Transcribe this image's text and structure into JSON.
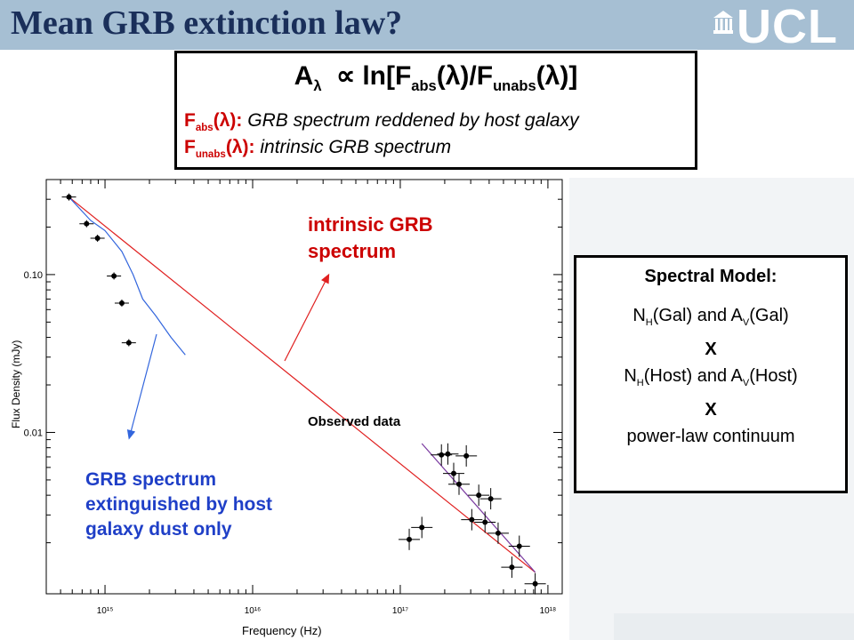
{
  "slide": {
    "title": "Mean GRB extinction law?",
    "logo_text": "UCL",
    "logo_icon": "portico-icon"
  },
  "formula_box": {
    "formula": {
      "a": "A",
      "lambda": "λ",
      "prop": "∝",
      "ln": "ln[F",
      "abs": "abs",
      "lp1": "(λ)/F",
      "unabs": "unabs",
      "lp2": "(λ)]"
    },
    "def1": {
      "f": "F",
      "sub": "abs",
      "lam": "(λ):",
      "text": "GRB spectrum reddened by host galaxy"
    },
    "def2": {
      "f": "F",
      "sub": "unabs",
      "lam": "(λ):",
      "text": "intrinsic GRB spectrum"
    }
  },
  "model_box": {
    "title": "Spectral Model:",
    "line1": {
      "n": "N",
      "nsub": "H",
      "mid": "(Gal) and A",
      "asub": "V",
      "end": "(Gal)"
    },
    "x1": "X",
    "line2": {
      "n": "N",
      "nsub": "H",
      "mid": "(Host) and A",
      "asub": "V",
      "end": "(Host)"
    },
    "x2": "X",
    "line3": "power-law continuum"
  },
  "chart_data": {
    "type": "scatter",
    "xlabel": "Frequency (Hz)",
    "ylabel": "Flux Density (mJy)",
    "xscale": "log",
    "yscale": "log",
    "xlim": [
      400000000000000.0,
      1.25e+18
    ],
    "ylim": [
      0.00095,
      0.4
    ],
    "x_ticks": [
      {
        "value": 1000000000000000.0,
        "label": "10¹⁵"
      },
      {
        "value": 1e+16,
        "label": "10¹⁶"
      },
      {
        "value": 1e+17,
        "label": "10¹⁷"
      },
      {
        "value": 1e+18,
        "label": "10¹⁸"
      }
    ],
    "y_ticks": [
      {
        "value": 0.1,
        "label": "0.10"
      },
      {
        "value": 0.01,
        "label": "0.01"
      }
    ],
    "grid": false,
    "series": [
      {
        "name": "Observed data",
        "color": "#000000",
        "points": [
          [
            570000000000000.0,
            0.31
          ],
          [
            750000000000000.0,
            0.21
          ],
          [
            890000000000000.0,
            0.17
          ],
          [
            1150000000000000.0,
            0.098
          ],
          [
            1300000000000000.0,
            0.066
          ],
          [
            1450000000000000.0,
            0.037
          ],
          [
            1.15e+17,
            0.0021
          ],
          [
            1.4e+17,
            0.0025
          ],
          [
            1.9e+17,
            0.0072
          ],
          [
            2.1e+17,
            0.0073
          ],
          [
            2.3e+17,
            0.0055
          ],
          [
            2.5e+17,
            0.0047
          ],
          [
            2.8e+17,
            0.0071
          ],
          [
            3.05e+17,
            0.0028
          ],
          [
            3.4e+17,
            0.004
          ],
          [
            3.75e+17,
            0.0027
          ],
          [
            4.1e+17,
            0.0038
          ],
          [
            4.6e+17,
            0.0023
          ],
          [
            5.7e+17,
            0.0014
          ],
          [
            6.4e+17,
            0.0019
          ],
          [
            8.2e+17,
            0.0011
          ]
        ]
      },
      {
        "name": "intrinsic GRB spectrum",
        "color": "#e02020",
        "line": [
          [
            570000000000000.0,
            0.31
          ],
          [
            8.2e+17,
            0.0013
          ]
        ]
      },
      {
        "name": "GRB spectrum extinguished by host galaxy dust only",
        "color": "#3366dd",
        "line": [
          [
            570000000000000.0,
            0.31
          ],
          [
            800000000000000.0,
            0.22
          ],
          [
            1000000000000000.0,
            0.19
          ],
          [
            1300000000000000.0,
            0.14
          ],
          [
            1550000000000000.0,
            0.1
          ],
          [
            1800000000000000.0,
            0.07
          ],
          [
            2200000000000000.0,
            0.055
          ],
          [
            2800000000000000.0,
            0.04
          ],
          [
            3500000000000000.0,
            0.031
          ]
        ]
      },
      {
        "name": "fit",
        "color": "#7a3aa0",
        "line": [
          [
            1.4e+17,
            0.0085
          ],
          [
            8.2e+17,
            0.0013
          ]
        ]
      }
    ],
    "annotations": {
      "intrinsic": "intrinsic GRB spectrum",
      "observed": "Observed data",
      "extinguished": "GRB spectrum extinguished by host galaxy dust only"
    }
  }
}
